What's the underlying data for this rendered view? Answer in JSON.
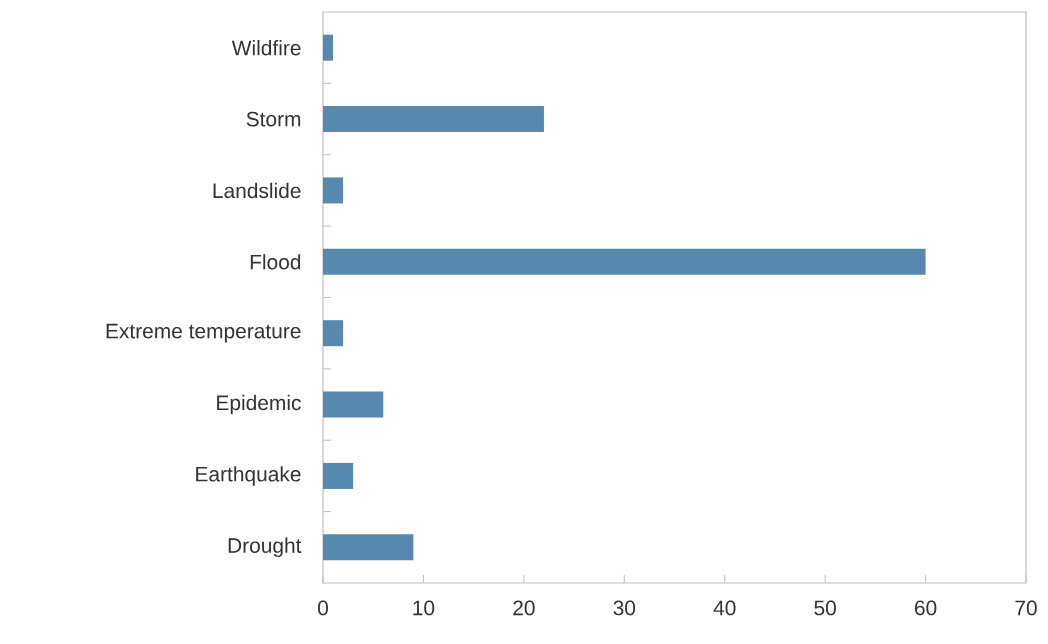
{
  "chart_data": {
    "type": "bar",
    "orientation": "horizontal",
    "categories": [
      "Wildfire",
      "Storm",
      "Landslide",
      "Flood",
      "Extreme temperature",
      "Epidemic",
      "Earthquake",
      "Drought"
    ],
    "values": [
      1,
      22,
      2,
      60,
      2,
      6,
      3,
      9
    ],
    "color": "#5689ad",
    "xlim": [
      0,
      70
    ],
    "xticks": [
      0,
      10,
      20,
      30,
      40,
      50,
      60,
      70
    ],
    "grid": false
  }
}
